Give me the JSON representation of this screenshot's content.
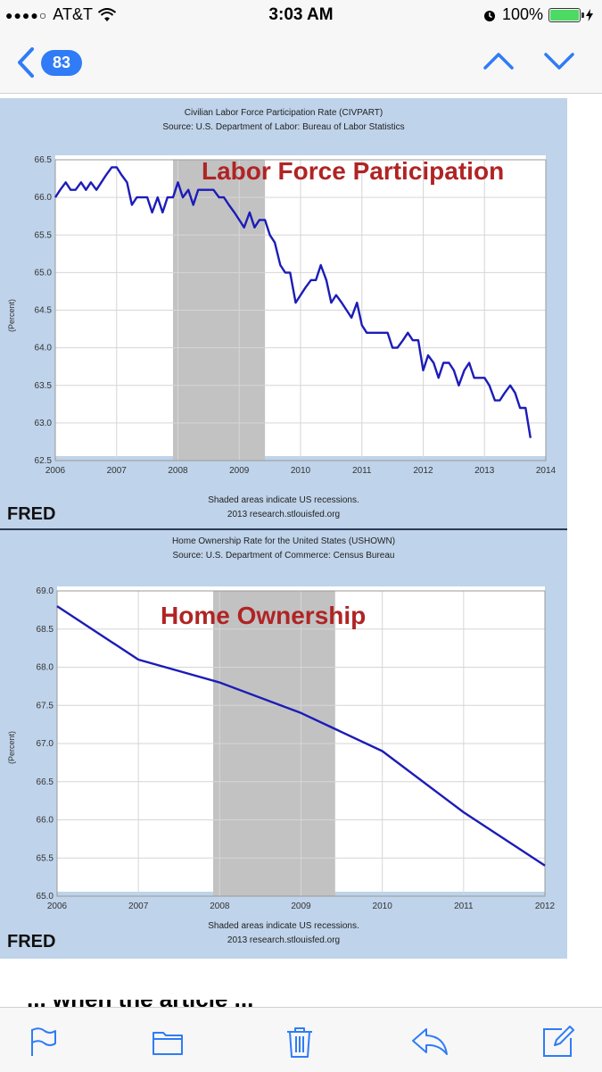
{
  "status_bar": {
    "carrier": "AT&T",
    "time": "3:03 AM",
    "battery": "100%",
    "signal_dots": "●●●●○"
  },
  "nav": {
    "back_count": "83",
    "up_icon": "chevron-up-icon",
    "down_icon": "chevron-down-icon"
  },
  "colors": {
    "accent": "#2f7cf6",
    "chart_bg": "#bfd3ea",
    "line": "#1c1cb8",
    "recession": "#c2c2c2",
    "overlay_text": "#b02424"
  },
  "charts": [
    {
      "title": "Civilian Labor Force Participation Rate (CIVPART)",
      "source": "Source: U.S. Department of Labor: Bureau of Labor Statistics",
      "overlay": "Labor Force Participation",
      "ylabel": "(Percent)",
      "footnote1": "Shaded areas indicate US recessions.",
      "footnote2": "2013 research.stlouisfed.org",
      "fred": "FRED"
    },
    {
      "title": "Home Ownership Rate for the United States (USHOWN)",
      "source": "Source: U.S. Department of Commerce: Census Bureau",
      "overlay": "Home Ownership",
      "ylabel": "(Percent)",
      "footnote1": "Shaded areas indicate US recessions.",
      "footnote2": "2013 research.stlouisfed.org",
      "fred": "FRED"
    }
  ],
  "chart_data": [
    {
      "type": "line",
      "title": "Civilian Labor Force Participation Rate (CIVPART)",
      "ylabel": "(Percent)",
      "xlim": [
        2006,
        2014
      ],
      "ylim": [
        62.5,
        66.5
      ],
      "x_ticks": [
        "2006",
        "2007",
        "2008",
        "2009",
        "2010",
        "2011",
        "2012",
        "2013",
        "2014"
      ],
      "y_ticks": [
        "62.5",
        "63.0",
        "63.5",
        "64.0",
        "64.5",
        "65.0",
        "65.5",
        "66.0",
        "66.5"
      ],
      "recessions": [
        [
          2007.92,
          2009.42
        ]
      ],
      "series": [
        {
          "x": [
            2006.0,
            2006.08,
            2006.17,
            2006.25,
            2006.33,
            2006.42,
            2006.5,
            2006.58,
            2006.67,
            2006.75,
            2006.83,
            2006.92,
            2007.0,
            2007.08,
            2007.17,
            2007.25,
            2007.33,
            2007.42,
            2007.5,
            2007.58,
            2007.67,
            2007.75,
            2007.83,
            2007.92,
            2008.0,
            2008.08,
            2008.17,
            2008.25,
            2008.33,
            2008.42,
            2008.5,
            2008.58,
            2008.67,
            2008.75,
            2008.83,
            2008.92,
            2009.0,
            2009.08,
            2009.17,
            2009.25,
            2009.33,
            2009.42,
            2009.5,
            2009.58,
            2009.67,
            2009.75,
            2009.83,
            2009.92,
            2010.0,
            2010.08,
            2010.17,
            2010.25,
            2010.33,
            2010.42,
            2010.5,
            2010.58,
            2010.67,
            2010.75,
            2010.83,
            2010.92,
            2011.0,
            2011.08,
            2011.17,
            2011.25,
            2011.33,
            2011.42,
            2011.5,
            2011.58,
            2011.67,
            2011.75,
            2011.83,
            2011.92,
            2012.0,
            2012.08,
            2012.17,
            2012.25,
            2012.33,
            2012.42,
            2012.5,
            2012.58,
            2012.67,
            2012.75,
            2012.83,
            2012.92,
            2013.0,
            2013.08,
            2013.17,
            2013.25,
            2013.33,
            2013.42,
            2013.5,
            2013.58,
            2013.67,
            2013.75
          ],
          "y": [
            66.0,
            66.1,
            66.2,
            66.1,
            66.1,
            66.2,
            66.1,
            66.2,
            66.1,
            66.2,
            66.3,
            66.4,
            66.4,
            66.3,
            66.2,
            65.9,
            66.0,
            66.0,
            66.0,
            65.8,
            66.0,
            65.8,
            66.0,
            66.0,
            66.2,
            66.0,
            66.1,
            65.9,
            66.1,
            66.1,
            66.1,
            66.1,
            66.0,
            66.0,
            65.9,
            65.8,
            65.7,
            65.6,
            65.8,
            65.6,
            65.7,
            65.7,
            65.5,
            65.4,
            65.1,
            65.0,
            65.0,
            64.6,
            64.7,
            64.8,
            64.9,
            64.9,
            65.1,
            64.9,
            64.6,
            64.7,
            64.6,
            64.5,
            64.4,
            64.6,
            64.3,
            64.2,
            64.2,
            64.2,
            64.2,
            64.2,
            64.0,
            64.0,
            64.1,
            64.2,
            64.1,
            64.1,
            63.7,
            63.9,
            63.8,
            63.6,
            63.8,
            63.8,
            63.7,
            63.5,
            63.7,
            63.8,
            63.6,
            63.6,
            63.6,
            63.5,
            63.3,
            63.3,
            63.4,
            63.5,
            63.4,
            63.2,
            63.2,
            62.8
          ]
        }
      ]
    },
    {
      "type": "line",
      "title": "Home Ownership Rate for the United States (USHOWN)",
      "ylabel": "(Percent)",
      "xlim": [
        2006,
        2012
      ],
      "ylim": [
        65.0,
        69.0
      ],
      "x_ticks": [
        "2006",
        "2007",
        "2008",
        "2009",
        "2010",
        "2011",
        "2012"
      ],
      "y_ticks": [
        "65.0",
        "65.5",
        "66.0",
        "66.5",
        "67.0",
        "67.5",
        "68.0",
        "68.5",
        "69.0"
      ],
      "recessions": [
        [
          2007.92,
          2009.42
        ]
      ],
      "series": [
        {
          "x": [
            2006,
            2007,
            2008,
            2009,
            2010,
            2011,
            2012
          ],
          "y": [
            68.8,
            68.1,
            67.8,
            67.4,
            66.9,
            66.1,
            65.4
          ]
        }
      ]
    }
  ],
  "partial_text": "... when the article ...",
  "toolbar": {
    "flag_icon": "flag-icon",
    "folder_icon": "folder-icon",
    "trash_icon": "trash-icon",
    "reply_icon": "reply-icon",
    "compose_icon": "compose-icon"
  }
}
